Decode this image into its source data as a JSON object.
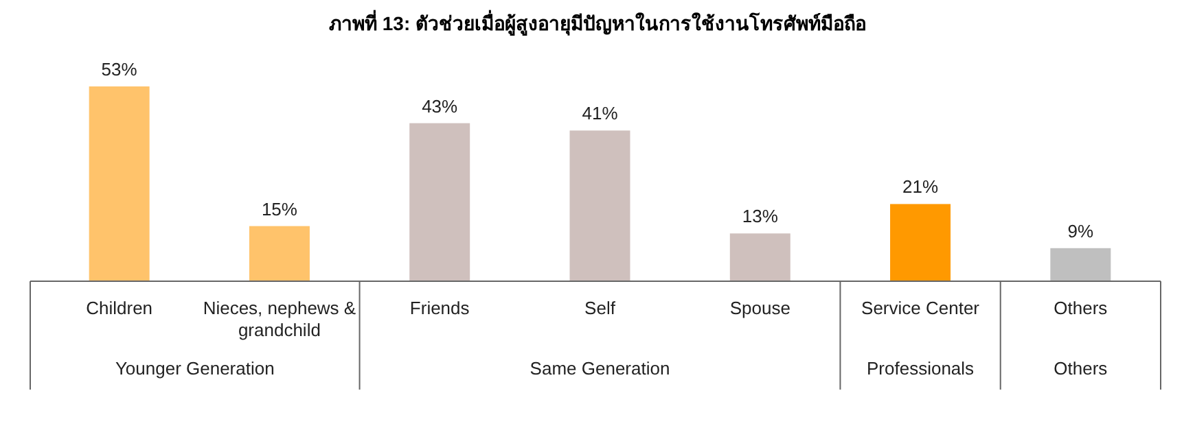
{
  "chart_data": {
    "type": "bar",
    "title": "ภาพที่ 13: ตัวช่วยเมื่อผู้สูงอายุมีปัญหาในการใช้งานโทรศัพท์มือถือ",
    "categories": [
      "Children",
      "Nieces, nephews & grandchild",
      "Friends",
      "Self",
      "Spouse",
      "Service Center",
      "Others"
    ],
    "values": [
      53,
      15,
      43,
      41,
      13,
      21,
      9
    ],
    "colors": [
      "#ffc36b",
      "#ffc36b",
      "#cfc0bd",
      "#cfc0bd",
      "#cfc0bd",
      "#ff9900",
      "#bfbfbf"
    ],
    "value_labels": [
      "53%",
      "15%",
      "43%",
      "41%",
      "13%",
      "21%",
      "9%"
    ],
    "annotations": [
      "Younger Generation",
      "Same Generation",
      "Professionals",
      "Others"
    ]
  }
}
